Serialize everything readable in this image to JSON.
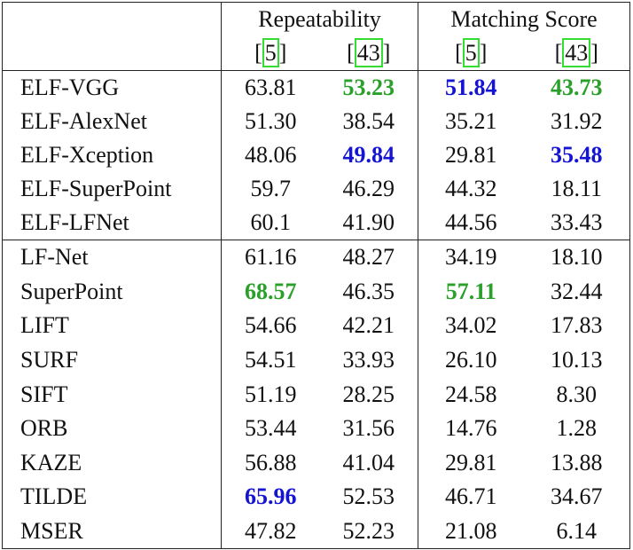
{
  "header": {
    "groups": [
      "Repeatability",
      "Matching Score"
    ],
    "refs": [
      "[5]",
      "[43]",
      "[5]",
      "[43]"
    ]
  },
  "table": {
    "rows": [
      [
        "ELF-VGG",
        "63.81",
        "53.23",
        "51.84",
        "43.73"
      ],
      [
        "ELF-AlexNet",
        "51.30",
        "38.54",
        "35.21",
        "31.92"
      ],
      [
        "ELF-Xception",
        "48.06",
        "49.84",
        "29.81",
        "35.48"
      ],
      [
        "ELF-SuperPoint",
        "59.7",
        "46.29",
        "44.32",
        "18.11"
      ],
      [
        "ELF-LFNet",
        "60.1",
        "41.90",
        "44.56",
        "33.43"
      ],
      [
        "LF-Net",
        "61.16",
        "48.27",
        "34.19",
        "18.10"
      ],
      [
        "SuperPoint",
        "68.57",
        "46.35",
        "57.11",
        "32.44"
      ],
      [
        "LIFT",
        "54.66",
        "42.21",
        "34.02",
        "17.83"
      ],
      [
        "SURF",
        "54.51",
        "33.93",
        "26.10",
        "10.13"
      ],
      [
        "SIFT",
        "51.19",
        "28.25",
        "24.58",
        "8.30"
      ],
      [
        "ORB",
        "53.44",
        "31.56",
        "14.76",
        "1.28"
      ],
      [
        "KAZE",
        "56.88",
        "41.04",
        "29.81",
        "13.88"
      ],
      [
        "TILDE",
        "65.96",
        "52.53",
        "46.71",
        "34.67"
      ],
      [
        "MSER",
        "47.82",
        "52.23",
        "21.08",
        "6.14"
      ]
    ]
  }
}
